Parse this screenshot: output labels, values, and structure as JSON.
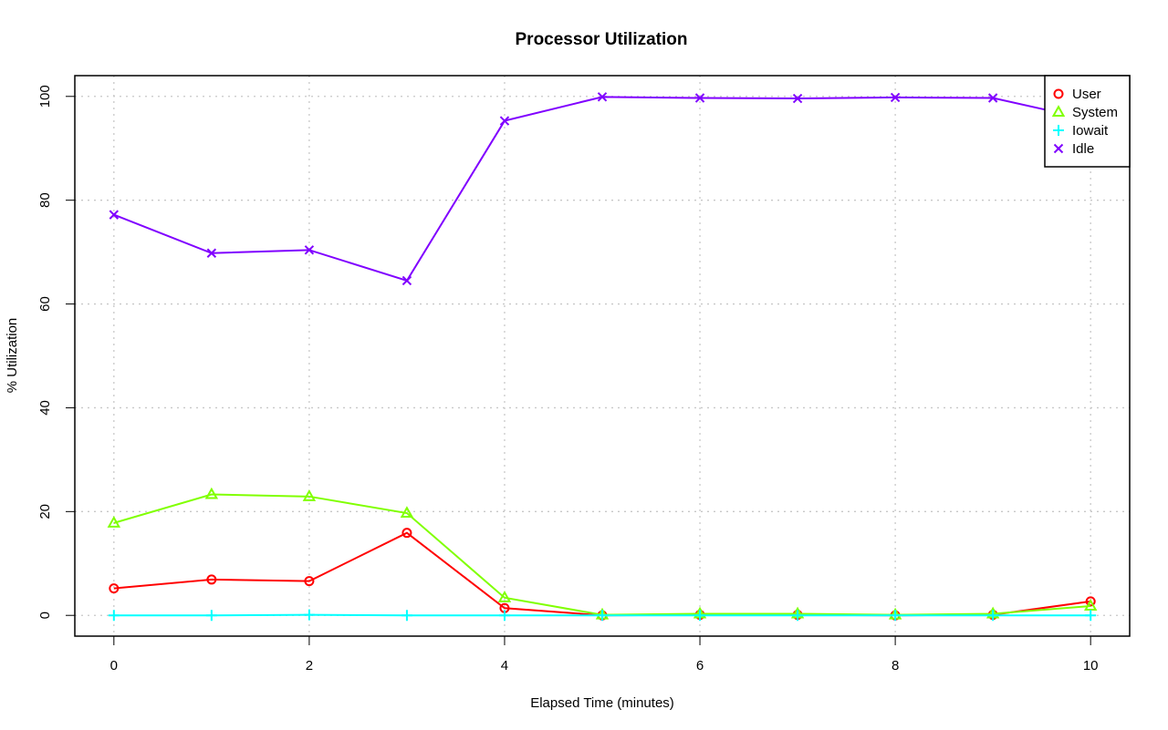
{
  "chart_data": {
    "type": "line",
    "title": "Processor Utilization",
    "xlabel": "Elapsed Time (minutes)",
    "ylabel": "% Utilization",
    "xlim": [
      -0.4,
      10.4
    ],
    "ylim": [
      -4,
      104
    ],
    "xticks": [
      0,
      2,
      4,
      6,
      8,
      10
    ],
    "yticks": [
      0,
      20,
      40,
      60,
      80,
      100
    ],
    "grid": true,
    "legend_position": "top-right",
    "x": [
      0,
      1,
      2,
      3,
      4,
      5,
      6,
      7,
      8,
      9,
      10
    ],
    "series": [
      {
        "name": "User",
        "color": "#ff0000",
        "marker": "circle",
        "values": [
          5.2,
          6.9,
          6.6,
          15.9,
          1.4,
          0.0,
          0.1,
          0.1,
          0.0,
          0.1,
          2.7
        ]
      },
      {
        "name": "System",
        "color": "#80ff00",
        "marker": "triangle",
        "values": [
          17.8,
          23.3,
          22.9,
          19.7,
          3.4,
          0.1,
          0.3,
          0.3,
          0.1,
          0.3,
          1.8
        ]
      },
      {
        "name": "Iowait",
        "color": "#00ffff",
        "marker": "plus",
        "values": [
          0.0,
          0.0,
          0.1,
          0.0,
          0.0,
          0.0,
          0.0,
          0.0,
          0.0,
          0.0,
          0.0
        ]
      },
      {
        "name": "Idle",
        "color": "#8000ff",
        "marker": "cross",
        "values": [
          77.2,
          69.8,
          70.4,
          64.5,
          95.3,
          99.9,
          99.7,
          99.6,
          99.8,
          99.7,
          95.5
        ]
      }
    ]
  }
}
